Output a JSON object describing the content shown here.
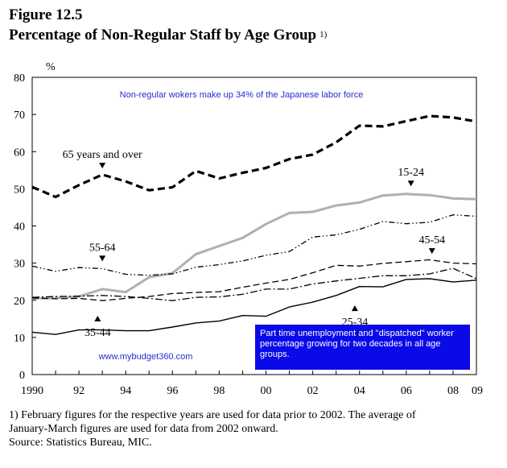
{
  "figure": {
    "label": "Figure 12.5",
    "title": "Percentage of Non-Regular Staff by Age Group",
    "title_note": "1)"
  },
  "annotations": {
    "headline": "Non-regular wokers make up 34% of the Japanese labor force",
    "box_lines": [
      "Part time unemployment and \"dispatched\" worker",
      "percentage growing for two decades in all age",
      "groups."
    ],
    "website": "www.mybudget360.com"
  },
  "footnotes": {
    "note1_line1": "1) February figures for the respective years are used for data prior to 2002. The average of",
    "note1_line2": "January-March figures are used for data from 2002 onward.",
    "source": "Source:  Statistics Bureau, MIC."
  },
  "colors": {
    "headline_text": "#2a2ad0",
    "box_fill": "#0a0ae8",
    "box_text": "#ffffff",
    "light_series": "#b0b0b0"
  },
  "chart_data": {
    "type": "line",
    "title": "Percentage of Non-Regular Staff by Age Group",
    "ylabel": "%",
    "xlabel": "",
    "ylim": [
      0,
      80
    ],
    "xlim": [
      1990,
      2009
    ],
    "yticks": [
      0,
      10,
      20,
      30,
      40,
      50,
      60,
      70,
      80
    ],
    "xticks": [
      1990,
      1992,
      1994,
      1996,
      1998,
      2000,
      2002,
      2004,
      2006,
      2008,
      2009
    ],
    "xtick_labels": [
      "1990",
      "92",
      "94",
      "96",
      "98",
      "00",
      "02",
      "04",
      "06",
      "08",
      "09"
    ],
    "grid": false,
    "x": [
      1990,
      1991,
      1992,
      1993,
      1994,
      1995,
      1996,
      1997,
      1998,
      1999,
      2000,
      2001,
      2002,
      2003,
      2004,
      2005,
      2006,
      2007,
      2008,
      2009
    ],
    "series": [
      {
        "name": "65 years and over",
        "style": "dashed-bold",
        "values": [
          50.5,
          47.8,
          51.0,
          53.8,
          52.0,
          49.6,
          50.4,
          54.8,
          52.8,
          54.3,
          55.6,
          58.0,
          59.2,
          62.5,
          67.0,
          66.8,
          68.2,
          69.6,
          69.2,
          68.1
        ]
      },
      {
        "name": "15-24",
        "style": "solid-gray",
        "values": [
          20.5,
          20.6,
          21.0,
          23.0,
          22.2,
          26.2,
          27.3,
          32.4,
          34.6,
          36.8,
          40.5,
          43.5,
          43.8,
          45.5,
          46.3,
          48.2,
          48.6,
          48.3,
          47.4,
          47.2
        ]
      },
      {
        "name": "55-64",
        "style": "dash-dot-dot",
        "values": [
          29.2,
          27.8,
          28.8,
          28.5,
          27.0,
          26.7,
          27.1,
          28.9,
          29.6,
          30.6,
          32.1,
          33.1,
          37.0,
          37.6,
          39.1,
          41.2,
          40.6,
          41.0,
          43.0,
          42.6
        ]
      },
      {
        "name": "45-54",
        "style": "dashed-thin",
        "values": [
          20.6,
          20.4,
          20.5,
          19.9,
          20.5,
          21.0,
          21.8,
          22.1,
          22.3,
          23.5,
          24.6,
          25.6,
          27.4,
          29.4,
          29.2,
          29.9,
          30.4,
          30.9,
          30.0,
          29.8
        ]
      },
      {
        "name": "35-44",
        "style": "dash-dot",
        "values": [
          20.8,
          21.0,
          21.1,
          21.3,
          21.0,
          20.5,
          19.9,
          20.8,
          20.9,
          21.6,
          23.0,
          23.0,
          24.4,
          25.2,
          25.9,
          26.6,
          26.6,
          27.1,
          28.6,
          25.8
        ]
      },
      {
        "name": "25-34",
        "style": "solid-black",
        "values": [
          11.4,
          10.8,
          12.0,
          12.0,
          11.8,
          11.8,
          12.8,
          13.9,
          14.4,
          15.9,
          15.7,
          18.2,
          19.5,
          21.3,
          23.7,
          23.6,
          25.6,
          25.8,
          24.9,
          25.4
        ]
      }
    ],
    "series_labels": [
      {
        "text": "65 years and over",
        "x": 1993,
        "y": 58.3,
        "arrow": "down"
      },
      {
        "text": "15-24",
        "x": 2006.2,
        "y": 53.5,
        "arrow": "down"
      },
      {
        "text": "55-64",
        "x": 1993.0,
        "y": 33.3,
        "arrow": "down"
      },
      {
        "text": "45-54",
        "x": 2007.1,
        "y": 35.3,
        "arrow": "down"
      },
      {
        "text": "35-44",
        "x": 1992.8,
        "y": 14.3,
        "arrow": "up"
      },
      {
        "text": "25-34",
        "x": 2003.8,
        "y": 17.1,
        "arrow": "up"
      }
    ]
  }
}
